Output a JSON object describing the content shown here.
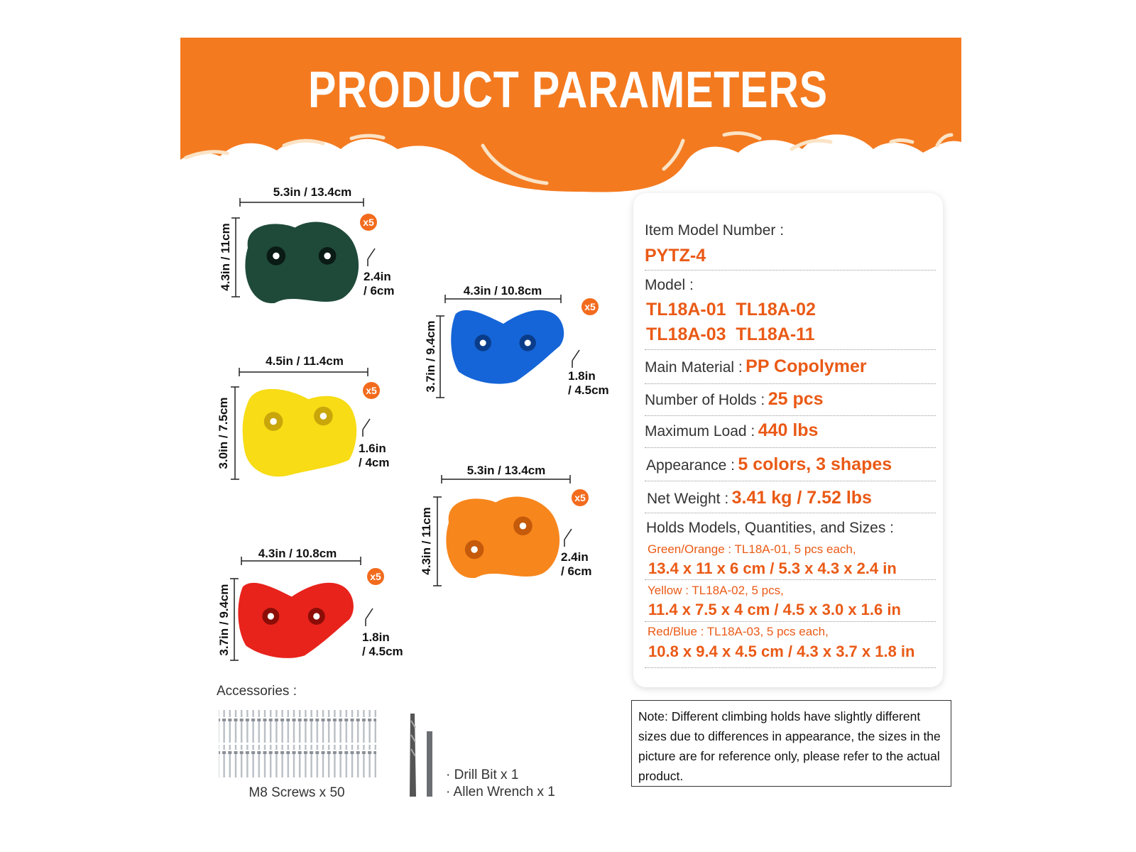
{
  "header": {
    "title": "PRODUCT PARAMETERS"
  },
  "holds": [
    {
      "width": "5.3in / 13.4cm",
      "height": "4.3in / 11cm",
      "depth": [
        "2.4in",
        "/ 6cm"
      ],
      "quantity": "x5"
    },
    {
      "width": "4.3in / 10.8cm",
      "height": "3.7in / 9.4cm",
      "depth": [
        "1.8in",
        "/ 4.5cm"
      ],
      "quantity": "x5"
    },
    {
      "width": "4.5in / 11.4cm",
      "height": "3.0in / 7.5cm",
      "depth": [
        "1.6in",
        "/ 4cm"
      ],
      "quantity": "x5"
    },
    {
      "width": "5.3in / 13.4cm",
      "height": "4.3in / 11cm",
      "depth": [
        "2.4in",
        "/ 6cm"
      ],
      "quantity": "x5"
    },
    {
      "width": "4.3in / 10.8cm",
      "height": "3.7in / 9.4cm",
      "depth": [
        "1.8in",
        "/ 4.5cm"
      ],
      "quantity": "x5"
    }
  ],
  "accessories": {
    "title": "Accessories :",
    "screws": "M8 Screws x 50",
    "items": [
      "· Drill Bit x 1",
      "· Allen Wrench x 1"
    ]
  },
  "specs": {
    "item_model": {
      "label": "Item Model Number :",
      "value": "PYTZ-4"
    },
    "model": {
      "label": "Model :",
      "values": [
        "TL18A-01  TL18A-02",
        "TL18A-03  TL18A-11"
      ]
    },
    "rows": [
      {
        "label": "Main Material :",
        "value": "PP Copolymer"
      },
      {
        "label": "Number of Holds :",
        "value": "25 pcs"
      },
      {
        "label": "Maximum Load :",
        "value": "440 lbs"
      },
      {
        "label": "Appearance :",
        "value": "5 colors, 3 shapes"
      },
      {
        "label": "Net Weight :",
        "value": "3.41 kg / 7.52 lbs"
      }
    ],
    "sizes": {
      "label": "Holds Models, Quantities, and Sizes :",
      "groups": [
        {
          "title": "Green/Orange : TL18A-01, 5 pcs each,",
          "size": "13.4 x 11 x 6 cm / 5.3 x 4.3 x 2.4 in"
        },
        {
          "title": "Yellow : TL18A-02, 5 pcs,",
          "size": "11.4 x 7.5 x 4 cm / 4.5 x 3.0 x 1.6 in"
        },
        {
          "title": "Red/Blue : TL18A-03, 5 pcs each,",
          "size": "10.8 x 9.4 x 4.5 cm / 4.3 x 3.7 x 1.8 in"
        }
      ]
    }
  },
  "note": "Note: Different climbing holds have slightly different sizes due to differences in  appearance, the sizes in the picture are for reference only, please refer to the actual product."
}
